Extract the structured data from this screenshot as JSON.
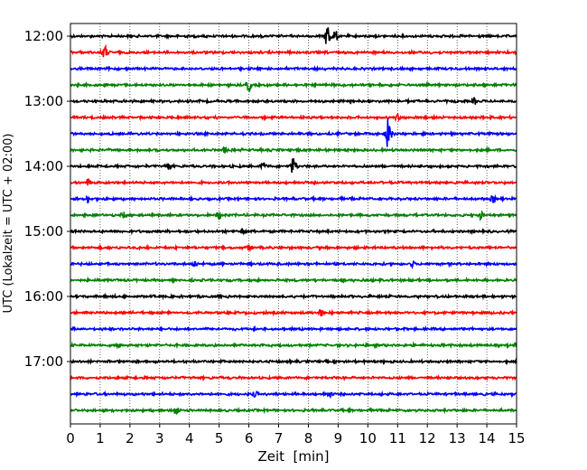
{
  "chart_data": {
    "type": "line",
    "title": "",
    "xlabel": "Zeit  [min]",
    "ylabel": "UTC (Lokalzeit = UTC + 02:00)",
    "xlim": [
      0,
      15
    ],
    "x_ticks": [
      0,
      1,
      2,
      3,
      4,
      5,
      6,
      7,
      8,
      9,
      10,
      11,
      12,
      13,
      14,
      15
    ],
    "x_tick_labels": [
      "0",
      "1",
      "2",
      "3",
      "4",
      "5",
      "6",
      "7",
      "8",
      "9",
      "10",
      "11",
      "12",
      "13",
      "14",
      "15"
    ],
    "y_tick_labels": [
      "12:00",
      "13:00",
      "14:00",
      "15:00",
      "16:00",
      "17:00"
    ],
    "grid": "vertical dotted",
    "trace_colors": [
      "#000000",
      "#ff0000",
      "#0000ff",
      "#008000"
    ],
    "traces": [
      {
        "start": "12:00",
        "events": [
          {
            "t": 8.65,
            "amp": 1.7
          },
          {
            "t": 8.9,
            "amp": 0.7
          }
        ]
      },
      {
        "start": "12:15",
        "events": [
          {
            "t": 1.15,
            "amp": 0.8
          }
        ]
      },
      {
        "start": "12:30",
        "events": []
      },
      {
        "start": "12:45",
        "events": [
          {
            "t": 6.0,
            "amp": 0.7
          }
        ]
      },
      {
        "start": "13:00",
        "events": [
          {
            "t": 13.6,
            "amp": 0.3
          }
        ]
      },
      {
        "start": "13:15",
        "events": [
          {
            "t": 11.0,
            "amp": 0.3
          }
        ]
      },
      {
        "start": "13:30",
        "events": [
          {
            "t": 10.7,
            "amp": 2.2
          }
        ]
      },
      {
        "start": "13:45",
        "events": [
          {
            "t": 5.2,
            "amp": 0.3
          }
        ]
      },
      {
        "start": "14:00",
        "events": [
          {
            "t": 7.5,
            "amp": 1.2
          },
          {
            "t": 3.3,
            "amp": 0.4
          },
          {
            "t": 6.5,
            "amp": 0.4
          }
        ]
      },
      {
        "start": "14:15",
        "events": [
          {
            "t": 0.6,
            "amp": 0.4
          }
        ]
      },
      {
        "start": "14:30",
        "events": [
          {
            "t": 0.6,
            "amp": 0.4
          },
          {
            "t": 14.2,
            "amp": 0.4
          }
        ]
      },
      {
        "start": "14:45",
        "events": [
          {
            "t": 5.0,
            "amp": 0.5
          },
          {
            "t": 13.8,
            "amp": 0.4
          },
          {
            "t": 1.8,
            "amp": 0.3
          }
        ]
      },
      {
        "start": "15:00",
        "events": [
          {
            "t": 5.8,
            "amp": 0.4
          }
        ]
      },
      {
        "start": "15:15",
        "events": [
          {
            "t": 6.0,
            "amp": 0.3
          }
        ]
      },
      {
        "start": "15:30",
        "events": [
          {
            "t": 4.2,
            "amp": 0.4
          },
          {
            "t": 11.5,
            "amp": 0.3
          }
        ]
      },
      {
        "start": "15:45",
        "events": []
      },
      {
        "start": "16:00",
        "events": []
      },
      {
        "start": "16:15",
        "events": [
          {
            "t": 8.4,
            "amp": 0.4
          }
        ]
      },
      {
        "start": "16:30",
        "events": []
      },
      {
        "start": "16:45",
        "events": [
          {
            "t": 1.6,
            "amp": 0.3
          },
          {
            "t": 15.0,
            "amp": 0.3
          }
        ]
      },
      {
        "start": "17:00",
        "events": []
      },
      {
        "start": "17:15",
        "events": []
      },
      {
        "start": "17:30",
        "events": [
          {
            "t": 6.2,
            "amp": 0.3
          },
          {
            "t": 8.7,
            "amp": 0.3
          }
        ]
      },
      {
        "start": "17:45",
        "events": [
          {
            "t": 3.55,
            "amp": 0.6
          }
        ]
      }
    ]
  }
}
